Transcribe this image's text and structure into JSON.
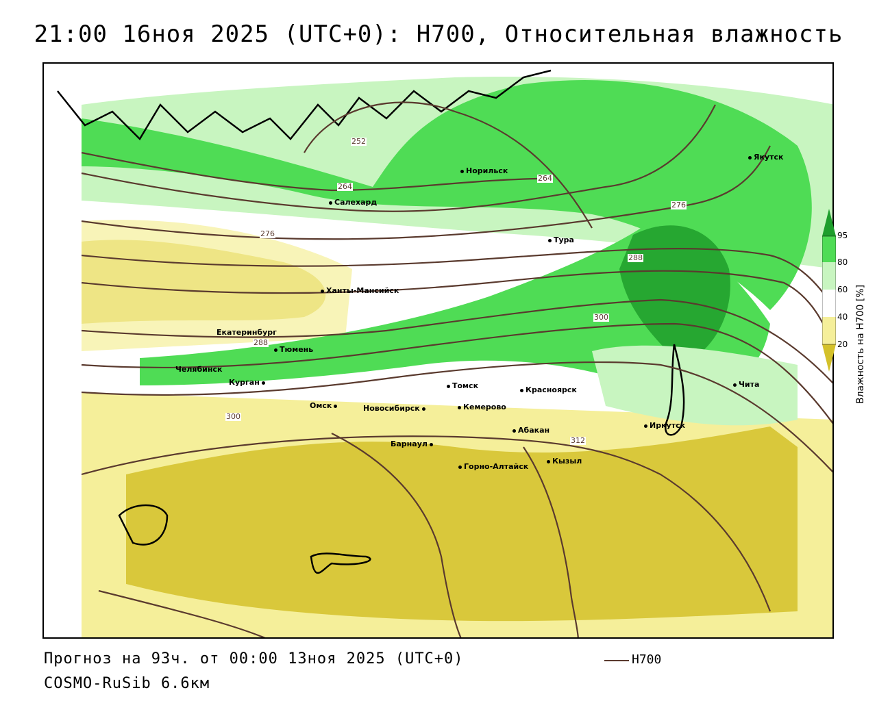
{
  "title": "21:00 16ноя 2025 (UTC+0): H700, Относительная влажность",
  "footer": {
    "forecast": "Прогноз на 93ч. от 00:00 13ноя 2025 (UTC+0)",
    "model": "COSMO-RuSib 6.6км",
    "legend_line_label": "H700"
  },
  "colors": {
    "dry_dark": "#d4c12a",
    "dry_light": "#f5ef9a",
    "moist_light": "#c8f5c0",
    "moist_mid": "#4fdc55",
    "moist_dark": "#1e9e2c",
    "contour": "#5a3a2e"
  },
  "colorbar": {
    "title": "Влажность на H700 [%]",
    "ticks": [
      "95",
      "80",
      "60",
      "40",
      "20"
    ]
  },
  "cities": [
    {
      "name": "Якутск"
    },
    {
      "name": "Норильск"
    },
    {
      "name": "Салехард"
    },
    {
      "name": "Тура"
    },
    {
      "name": "Ханты-Мансийск"
    },
    {
      "name": "Екатеринбург"
    },
    {
      "name": "Тюмень"
    },
    {
      "name": "Челябинск"
    },
    {
      "name": "Курган"
    },
    {
      "name": "Омск"
    },
    {
      "name": "Новосибирск"
    },
    {
      "name": "Томск"
    },
    {
      "name": "Кемерово"
    },
    {
      "name": "Красноярск"
    },
    {
      "name": "Абакан"
    },
    {
      "name": "Барнаул"
    },
    {
      "name": "Горно-Алтайск"
    },
    {
      "name": "Кызыл"
    },
    {
      "name": "Иркутск"
    },
    {
      "name": "Чита"
    }
  ],
  "contour_labels": [
    "252",
    "264",
    "264",
    "276",
    "276",
    "288",
    "288",
    "300",
    "300",
    "312"
  ]
}
